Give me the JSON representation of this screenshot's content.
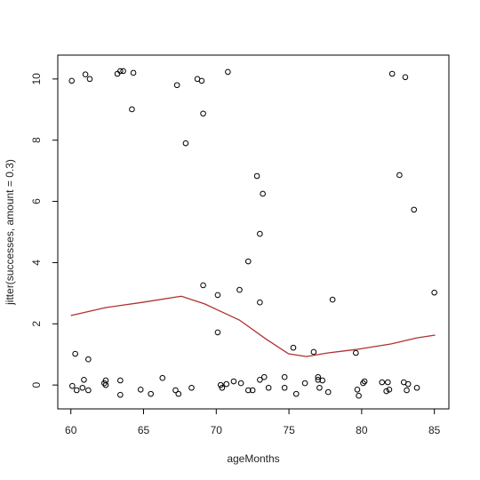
{
  "chart_data": {
    "type": "scatter",
    "x_label": "ageMonths",
    "y_label": "jitter(successes, amount = 0.3)",
    "xlim": [
      59.1,
      86.0
    ],
    "ylim": [
      -0.78,
      10.78
    ],
    "xticks": [
      60,
      65,
      70,
      75,
      80,
      85
    ],
    "yticks": [
      0,
      2,
      4,
      6,
      8,
      10
    ],
    "color": "#000000",
    "x": [
      60.06,
      60.3,
      60.1,
      60.4,
      60.8,
      60.9,
      61.0,
      61.3,
      61.2,
      61.2,
      62.3,
      62.4,
      62.4,
      63.2,
      63.4,
      63.6,
      63.4,
      63.4,
      64.2,
      64.3,
      64.8,
      65.5,
      66.3,
      67.2,
      67.3,
      67.4,
      67.9,
      68.3,
      68.7,
      69.0,
      69.1,
      69.1,
      70.1,
      70.1,
      70.3,
      70.4,
      70.8,
      70.7,
      71.2,
      71.6,
      71.7,
      72.2,
      72.2,
      72.5,
      72.8,
      73.0,
      73.0,
      73.0,
      73.2,
      73.3,
      73.6,
      74.7,
      74.7,
      75.3,
      75.5,
      76.1,
      76.7,
      77.0,
      77.0,
      77.1,
      77.3,
      77.7,
      78.0,
      79.6,
      79.7,
      79.8,
      80.1,
      80.2,
      81.4,
      81.7,
      81.8,
      81.9,
      82.1,
      82.6,
      82.9,
      83.0,
      83.1,
      83.2,
      83.6,
      83.8,
      85.0
    ],
    "y": [
      9.94,
      1.02,
      -0.03,
      -0.17,
      -0.09,
      0.17,
      10.15,
      10.0,
      0.84,
      -0.17,
      0.06,
      0.15,
      0,
      10.17,
      10.26,
      10.26,
      0.15,
      -0.32,
      9.01,
      10.2,
      -0.15,
      -0.29,
      0.23,
      -0.17,
      9.8,
      -0.29,
      7.9,
      -0.09,
      10.0,
      9.94,
      8.87,
      3.26,
      1.72,
      2.94,
      0,
      -0.09,
      10.23,
      0.03,
      0.12,
      3.11,
      0.06,
      4.04,
      -0.17,
      -0.17,
      6.83,
      4.94,
      2.7,
      0.17,
      6.25,
      0.26,
      -0.09,
      0.26,
      -0.09,
      1.22,
      -0.29,
      0.06,
      1.08,
      0.26,
      0.17,
      -0.09,
      0.15,
      -0.23,
      2.79,
      1.05,
      -0.15,
      -0.35,
      0.06,
      0.12,
      0.09,
      -0.2,
      0.09,
      -0.15,
      10.17,
      6.86,
      0.09,
      10.06,
      -0.17,
      0.03,
      5.73,
      -0.09,
      3.02
    ],
    "line": {
      "color": "#b03030",
      "x": [
        60.0,
        62.4,
        64.9,
        67.3,
        67.6,
        69.2,
        71.6,
        73.4,
        74.97,
        76.2,
        77.7,
        79.6,
        82.0,
        83.8,
        85.06
      ],
      "y": [
        2.27,
        2.53,
        2.7,
        2.88,
        2.9,
        2.65,
        2.12,
        1.51,
        1.02,
        0.93,
        1.05,
        1.16,
        1.34,
        1.54,
        1.63
      ]
    }
  }
}
